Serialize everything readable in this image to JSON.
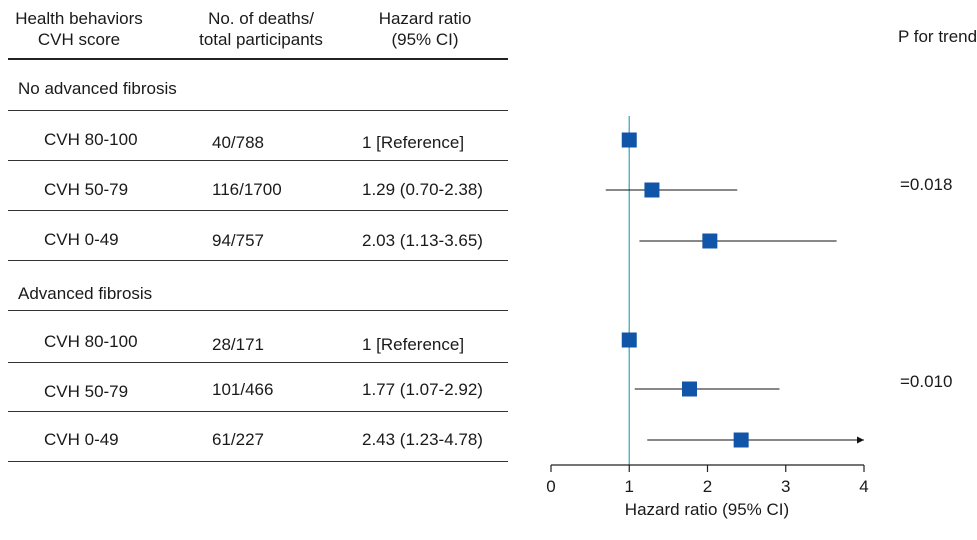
{
  "table": {
    "headers": {
      "col1": [
        "Health behaviors",
        "CVH score"
      ],
      "col2": [
        "No. of deaths/",
        "total participants"
      ],
      "col3": [
        "Hazard ratio",
        "(95% CI)"
      ],
      "col4": "P for trend"
    },
    "groups": [
      {
        "label": "No advanced fibrosis",
        "p_trend": "=0.018",
        "rows": [
          {
            "score": "CVH 80-100",
            "deaths": "40/788",
            "hr": "1 [Reference]"
          },
          {
            "score": "CVH 50-79",
            "deaths": "116/1700",
            "hr": "1.29 (0.70-2.38)"
          },
          {
            "score": "CVH 0-49",
            "deaths": "94/757",
            "hr": "2.03 (1.13-3.65)"
          }
        ]
      },
      {
        "label": "Advanced fibrosis",
        "p_trend": "=0.010",
        "rows": [
          {
            "score": "CVH 80-100",
            "deaths": "28/171",
            "hr": "1 [Reference]"
          },
          {
            "score": "CVH 50-79",
            "deaths": "101/466",
            "hr": "1.77 (1.07-2.92)"
          },
          {
            "score": "CVH 0-49",
            "deaths": "61/227",
            "hr": "2.43 (1.23-4.78)"
          }
        ]
      }
    ]
  },
  "chart_data": {
    "type": "forest",
    "xlabel": "Hazard ratio (95% CI)",
    "xlim": [
      0,
      4
    ],
    "xticks": [
      "0",
      "1",
      "2",
      "3",
      "4"
    ],
    "reference_line": 1,
    "marker_color": "#1155a8",
    "ref_line_color": "#4fb0c6",
    "series": [
      {
        "name": "No advanced fibrosis",
        "points": [
          {
            "label": "CVH 80-100",
            "hr": 1.0,
            "lo": null,
            "hi": null
          },
          {
            "label": "CVH 50-79",
            "hr": 1.29,
            "lo": 0.7,
            "hi": 2.38
          },
          {
            "label": "CVH 0-49",
            "hr": 2.03,
            "lo": 1.13,
            "hi": 3.65
          }
        ]
      },
      {
        "name": "Advanced fibrosis",
        "points": [
          {
            "label": "CVH 80-100",
            "hr": 1.0,
            "lo": null,
            "hi": null
          },
          {
            "label": "CVH 50-79",
            "hr": 1.77,
            "lo": 1.07,
            "hi": 2.92
          },
          {
            "label": "CVH 0-49",
            "hr": 2.43,
            "lo": 1.23,
            "hi": 4.78,
            "truncated": true
          }
        ]
      }
    ]
  }
}
